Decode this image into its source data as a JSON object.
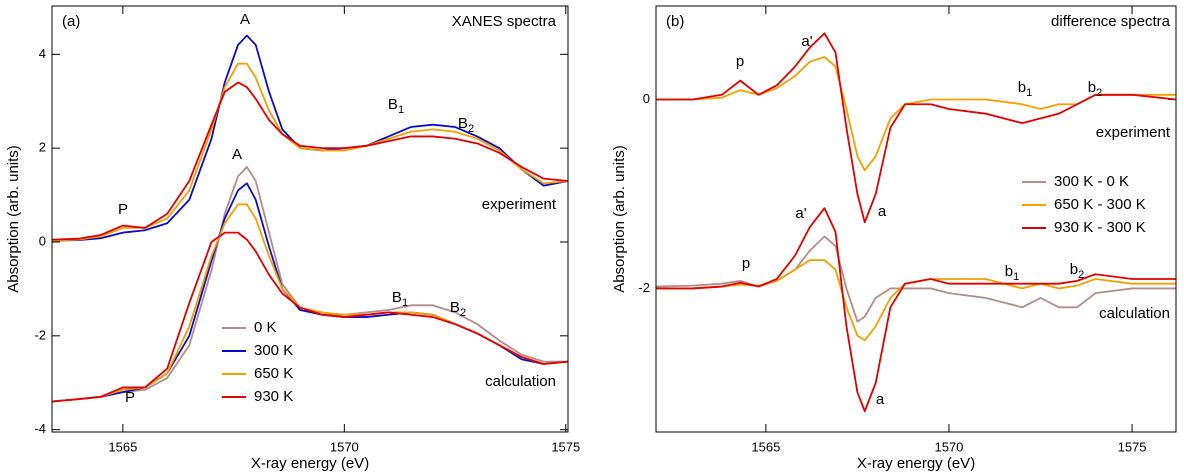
{
  "chart_data": [
    {
      "type": "line",
      "x_label": "X-ray energy (eV)",
      "y_label": "Absorption (arb. units)",
      "xlim": [
        1563.4,
        1575.05
      ],
      "ylim": [
        -4.05,
        5.03
      ],
      "xticks": [
        1565,
        1570,
        1575
      ],
      "yticks": [
        -4,
        -2,
        0,
        2,
        4
      ],
      "x": [
        1563.4,
        1564,
        1564.5,
        1565,
        1565.5,
        1566,
        1566.5,
        1567,
        1567.3,
        1567.6,
        1567.8,
        1568,
        1568.3,
        1568.6,
        1569,
        1569.5,
        1570,
        1570.5,
        1571,
        1571.5,
        1572,
        1572.5,
        1573,
        1573.5,
        1574,
        1574.5,
        1575.05
      ],
      "series": [
        {
          "name": "0 K",
          "color": "#b38b8b",
          "values": [
            -3.4,
            -3.35,
            -3.3,
            -3.2,
            -3.15,
            -2.9,
            -2.2,
            -0.6,
            0.6,
            1.4,
            1.6,
            1.3,
            0.2,
            -0.9,
            -1.4,
            -1.55,
            -1.55,
            -1.5,
            -1.45,
            -1.35,
            -1.35,
            -1.5,
            -1.75,
            -2.1,
            -2.4,
            -2.55,
            -2.55
          ]
        },
        {
          "name": "300 K",
          "color": "#0a0acc",
          "values": [
            -3.4,
            -3.35,
            -3.3,
            -3.2,
            -3.1,
            -2.8,
            -2.0,
            -0.4,
            0.5,
            1.1,
            1.25,
            0.9,
            -0.1,
            -1.0,
            -1.45,
            -1.55,
            -1.6,
            -1.6,
            -1.55,
            -1.5,
            -1.55,
            -1.75,
            -1.95,
            -2.2,
            -2.5,
            -2.6,
            -2.55
          ]
        },
        {
          "name": "650 K",
          "color": "#f0a000",
          "values": [
            -3.4,
            -3.35,
            -3.3,
            -3.15,
            -3.1,
            -2.8,
            -1.8,
            -0.3,
            0.4,
            0.8,
            0.8,
            0.5,
            -0.3,
            -1.0,
            -1.4,
            -1.5,
            -1.55,
            -1.55,
            -1.5,
            -1.5,
            -1.55,
            -1.75,
            -1.95,
            -2.2,
            -2.45,
            -2.6,
            -2.55
          ]
        },
        {
          "name": "930 K",
          "color": "#e00000",
          "values": [
            -3.4,
            -3.35,
            -3.3,
            -3.1,
            -3.1,
            -2.7,
            -1.3,
            0.0,
            0.2,
            0.2,
            0.05,
            -0.2,
            -0.7,
            -1.1,
            -1.4,
            -1.55,
            -1.6,
            -1.55,
            -1.5,
            -1.55,
            -1.6,
            -1.75,
            -1.95,
            -2.2,
            -2.45,
            -2.6,
            -2.55
          ]
        },
        {
          "name": "300 K",
          "color": "#0a0acc",
          "values": [
            0.03,
            0.04,
            0.08,
            0.2,
            0.25,
            0.4,
            0.9,
            2.2,
            3.4,
            4.2,
            4.4,
            4.2,
            3.2,
            2.4,
            2.0,
            1.95,
            2.0,
            2.05,
            2.25,
            2.45,
            2.5,
            2.45,
            2.25,
            2.0,
            1.55,
            1.2,
            1.3
          ]
        },
        {
          "name": "650 K",
          "color": "#f0a000",
          "values": [
            0.03,
            0.05,
            0.12,
            0.3,
            0.3,
            0.5,
            1.1,
            2.4,
            3.3,
            3.8,
            3.8,
            3.5,
            2.8,
            2.3,
            2.0,
            1.95,
            1.95,
            2.05,
            2.2,
            2.35,
            2.4,
            2.35,
            2.2,
            1.95,
            1.55,
            1.25,
            1.3
          ]
        },
        {
          "name": "930 K",
          "color": "#e00000",
          "values": [
            0.05,
            0.07,
            0.15,
            0.35,
            0.3,
            0.6,
            1.3,
            2.5,
            3.2,
            3.4,
            3.3,
            3.05,
            2.6,
            2.3,
            2.05,
            2.0,
            2.0,
            2.05,
            2.15,
            2.25,
            2.25,
            2.2,
            2.1,
            1.9,
            1.6,
            1.35,
            1.3
          ]
        }
      ],
      "annotations": [
        {
          "text": "(a)"
        },
        {
          "text": "XANES spectra"
        },
        {
          "text": "A"
        },
        {
          "text": "A"
        },
        {
          "text": "B",
          "sub": "1"
        },
        {
          "text": "B",
          "sub": "2"
        },
        {
          "text": "B",
          "sub": "1"
        },
        {
          "text": "B",
          "sub": "2"
        },
        {
          "text": "P"
        },
        {
          "text": "P"
        },
        {
          "text": "experiment"
        },
        {
          "text": "calculation"
        }
      ]
    },
    {
      "type": "line",
      "x_label": "X-ray energy (eV)",
      "y_label": "Absorption (arb. units)",
      "xlim": [
        1562,
        1576.2
      ],
      "ylim": [
        -3.52,
        0.99
      ],
      "xticks": [
        1565,
        1570,
        1575
      ],
      "yticks": [
        -2,
        0
      ],
      "x": [
        1562,
        1563,
        1563.8,
        1564.3,
        1564.8,
        1565.3,
        1565.8,
        1566.2,
        1566.6,
        1566.9,
        1567.2,
        1567.5,
        1567.7,
        1568,
        1568.4,
        1568.8,
        1569.5,
        1570,
        1571,
        1572,
        1572.5,
        1573,
        1573.5,
        1574,
        1575,
        1576.2
      ],
      "series": [
        {
          "name": "300 K - 0 K",
          "color": "#b38b8b",
          "values": [
            -1.98,
            -1.97,
            -1.95,
            -1.92,
            -1.98,
            -1.92,
            -1.8,
            -1.6,
            -1.45,
            -1.55,
            -2.0,
            -2.35,
            -2.3,
            -2.1,
            -2.0,
            -2.0,
            -2.0,
            -2.05,
            -2.1,
            -2.2,
            -2.1,
            -2.2,
            -2.2,
            -2.05,
            -2.0,
            -2.0
          ]
        },
        {
          "name": "650 K - 300 K",
          "color": "#f0a000",
          "values": [
            -2,
            -2,
            -1.98,
            -1.96,
            -1.97,
            -1.92,
            -1.8,
            -1.7,
            -1.7,
            -1.8,
            -2.2,
            -2.5,
            -2.55,
            -2.4,
            -2.1,
            -1.95,
            -1.9,
            -1.9,
            -1.9,
            -2.0,
            -1.95,
            -2.0,
            -1.97,
            -1.9,
            -1.95,
            -1.95
          ]
        },
        {
          "name": "930 K - 300 K",
          "color": "#e00000",
          "values": [
            -2,
            -2,
            -1.98,
            -1.94,
            -1.98,
            -1.9,
            -1.65,
            -1.35,
            -1.15,
            -1.4,
            -2.4,
            -3.1,
            -3.3,
            -3.0,
            -2.2,
            -1.95,
            -1.9,
            -1.95,
            -1.95,
            -1.95,
            -1.95,
            -1.95,
            -1.92,
            -1.85,
            -1.9,
            -1.9
          ]
        },
        {
          "name": "650 K - 300 K",
          "color": "#f0a000",
          "values": [
            0,
            0,
            0.02,
            0.1,
            0.05,
            0.12,
            0.25,
            0.4,
            0.45,
            0.35,
            -0.1,
            -0.6,
            -0.75,
            -0.6,
            -0.2,
            -0.05,
            0,
            0,
            0,
            -0.05,
            -0.1,
            -0.05,
            -0.05,
            0.05,
            0.05,
            0.05
          ]
        },
        {
          "name": "930 K - 300 K",
          "color": "#e00000",
          "values": [
            0,
            0,
            0.05,
            0.2,
            0.05,
            0.15,
            0.35,
            0.55,
            0.7,
            0.5,
            -0.3,
            -1.0,
            -1.3,
            -1.0,
            -0.3,
            -0.05,
            -0.05,
            -0.1,
            -0.15,
            -0.25,
            -0.2,
            -0.15,
            -0.05,
            0.05,
            0.05,
            0.0
          ]
        }
      ],
      "annotations": [
        {
          "text": "(b)"
        },
        {
          "text": "difference spectra"
        },
        {
          "text": "p"
        },
        {
          "text": "a'"
        },
        {
          "text": "b",
          "sub": "1"
        },
        {
          "text": "b",
          "sub": "2"
        },
        {
          "text": "experiment"
        },
        {
          "text": "a"
        },
        {
          "text": "a'"
        },
        {
          "text": "p"
        },
        {
          "text": "b",
          "sub": "1"
        },
        {
          "text": "b",
          "sub": "2"
        },
        {
          "text": "calculation"
        },
        {
          "text": "a"
        }
      ]
    }
  ]
}
